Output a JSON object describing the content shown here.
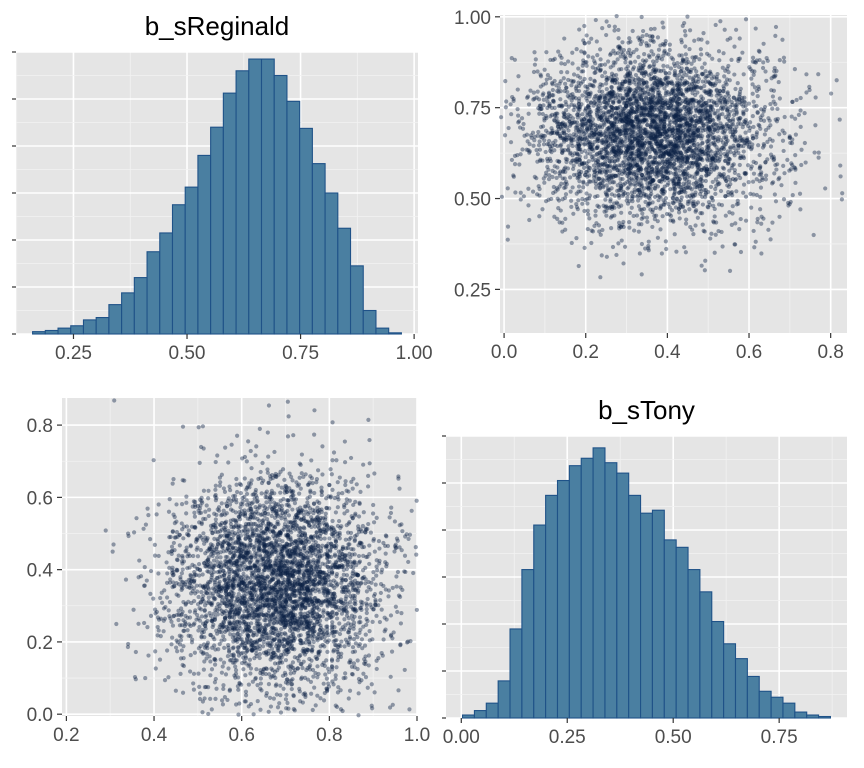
{
  "colors": {
    "panel_background": "#e5e5e5",
    "grid": "#ffffff",
    "bar_fill": "#4a7fa1",
    "bar_outline": "#1f5288",
    "point": "#0b2145",
    "tick_text": "#4d4d4d"
  },
  "chart_data": [
    {
      "type": "bar",
      "title": "b_sReginald",
      "xlabel": "",
      "ylabel": "",
      "x_ticks": [
        "0.25",
        "0.50",
        "0.75",
        "1.00"
      ],
      "x_tick_values": [
        0.25,
        0.5,
        0.75,
        1.0
      ],
      "y_ticks_labeled": false,
      "grid": true,
      "bin_width": 0.028,
      "bin_start": 0.16,
      "values": [
        2,
        3,
        5,
        7,
        12,
        14,
        25,
        35,
        48,
        70,
        86,
        110,
        125,
        152,
        176,
        205,
        224,
        234,
        234,
        220,
        198,
        175,
        145,
        120,
        90,
        58,
        20,
        5,
        1
      ],
      "count_max": 240
    },
    {
      "type": "scatter",
      "title": "",
      "xlabel": "",
      "ylabel": "",
      "x_ticks": [
        "0.0",
        "0.2",
        "0.4",
        "0.6",
        "0.8"
      ],
      "x_tick_values": [
        0.0,
        0.2,
        0.4,
        0.6,
        0.8
      ],
      "y_ticks": [
        "0.25",
        "0.50",
        "0.75",
        "1.00"
      ],
      "y_tick_values": [
        0.25,
        0.5,
        0.75,
        1.0
      ],
      "xlim": [
        -0.01,
        0.84
      ],
      "ylim": [
        0.13,
        1.005
      ],
      "x_variable": "b_sTony",
      "y_variable": "b_sReginald",
      "distribution": {
        "x_mean": 0.36,
        "x_sd": 0.15,
        "y_mean": 0.68,
        "y_sd": 0.12,
        "n": 4000,
        "seed": 7
      },
      "grid": true
    },
    {
      "type": "scatter",
      "title": "",
      "xlabel": "",
      "ylabel": "",
      "x_ticks": [
        "0.2",
        "0.4",
        "0.6",
        "0.8",
        "1.0"
      ],
      "x_tick_values": [
        0.2,
        0.4,
        0.6,
        0.8,
        1.0
      ],
      "y_ticks": [
        "0.0",
        "0.2",
        "0.4",
        "0.6",
        "0.8"
      ],
      "y_tick_values": [
        0.0,
        0.2,
        0.4,
        0.6,
        0.8
      ],
      "xlim": [
        0.19,
        1.0
      ],
      "ylim": [
        -0.005,
        0.875
      ],
      "x_variable": "b_sReginald",
      "y_variable": "b_sTony",
      "distribution": {
        "x_mean": 0.68,
        "x_sd": 0.12,
        "y_mean": 0.36,
        "y_sd": 0.15,
        "n": 4000,
        "seed": 11
      },
      "grid": true
    },
    {
      "type": "bar",
      "title": "b_sTony",
      "xlabel": "",
      "ylabel": "",
      "x_ticks": [
        "0.00",
        "0.25",
        "0.50",
        "0.75"
      ],
      "x_tick_values": [
        0.0,
        0.25,
        0.5,
        0.75
      ],
      "y_ticks_labeled": false,
      "grid": true,
      "bin_width": 0.028,
      "bin_start": 0.003,
      "values": [
        2,
        5,
        10,
        25,
        60,
        100,
        130,
        150,
        160,
        170,
        175,
        182,
        172,
        165,
        150,
        138,
        140,
        120,
        115,
        100,
        85,
        65,
        50,
        40,
        28,
        18,
        14,
        10,
        4,
        2,
        1
      ],
      "count_max": 190
    }
  ]
}
